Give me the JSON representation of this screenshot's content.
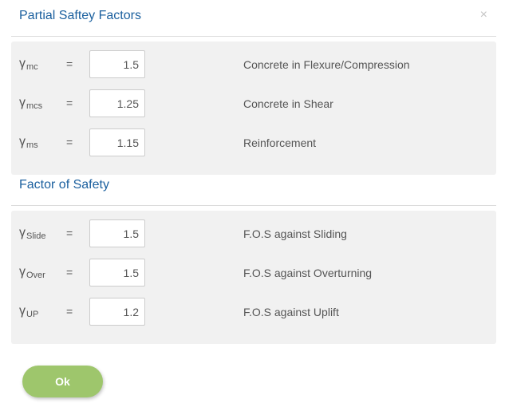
{
  "dialog": {
    "title": "Partial Saftey Factors",
    "close_icon": "×"
  },
  "partial_factors": {
    "rows": [
      {
        "symbol": "γ",
        "subscript": "mc",
        "equals": "=",
        "value": "1.5",
        "description": "Concrete in Flexure/Compression"
      },
      {
        "symbol": "γ",
        "subscript": "mcs",
        "equals": "=",
        "value": "1.25",
        "description": "Concrete in Shear"
      },
      {
        "symbol": "γ",
        "subscript": "ms",
        "equals": "=",
        "value": "1.15",
        "description": "Reinforcement"
      }
    ]
  },
  "factor_of_safety": {
    "title": "Factor of Safety",
    "rows": [
      {
        "symbol": "γ",
        "subscript": "Slide",
        "equals": "=",
        "value": "1.5",
        "description": "F.O.S against Sliding"
      },
      {
        "symbol": "γ",
        "subscript": "Over",
        "equals": "=",
        "value": "1.5",
        "description": "F.O.S against Overturning"
      },
      {
        "symbol": "γ",
        "subscript": "UP",
        "equals": "=",
        "value": "1.2",
        "description": "F.O.S against Uplift"
      }
    ]
  },
  "actions": {
    "ok_label": "Ok"
  },
  "colors": {
    "title": "#1a5f9e",
    "panel_background": "#f1f1f1",
    "ok_button": "#9ec66c",
    "close_icon": "#c4c4c4"
  }
}
